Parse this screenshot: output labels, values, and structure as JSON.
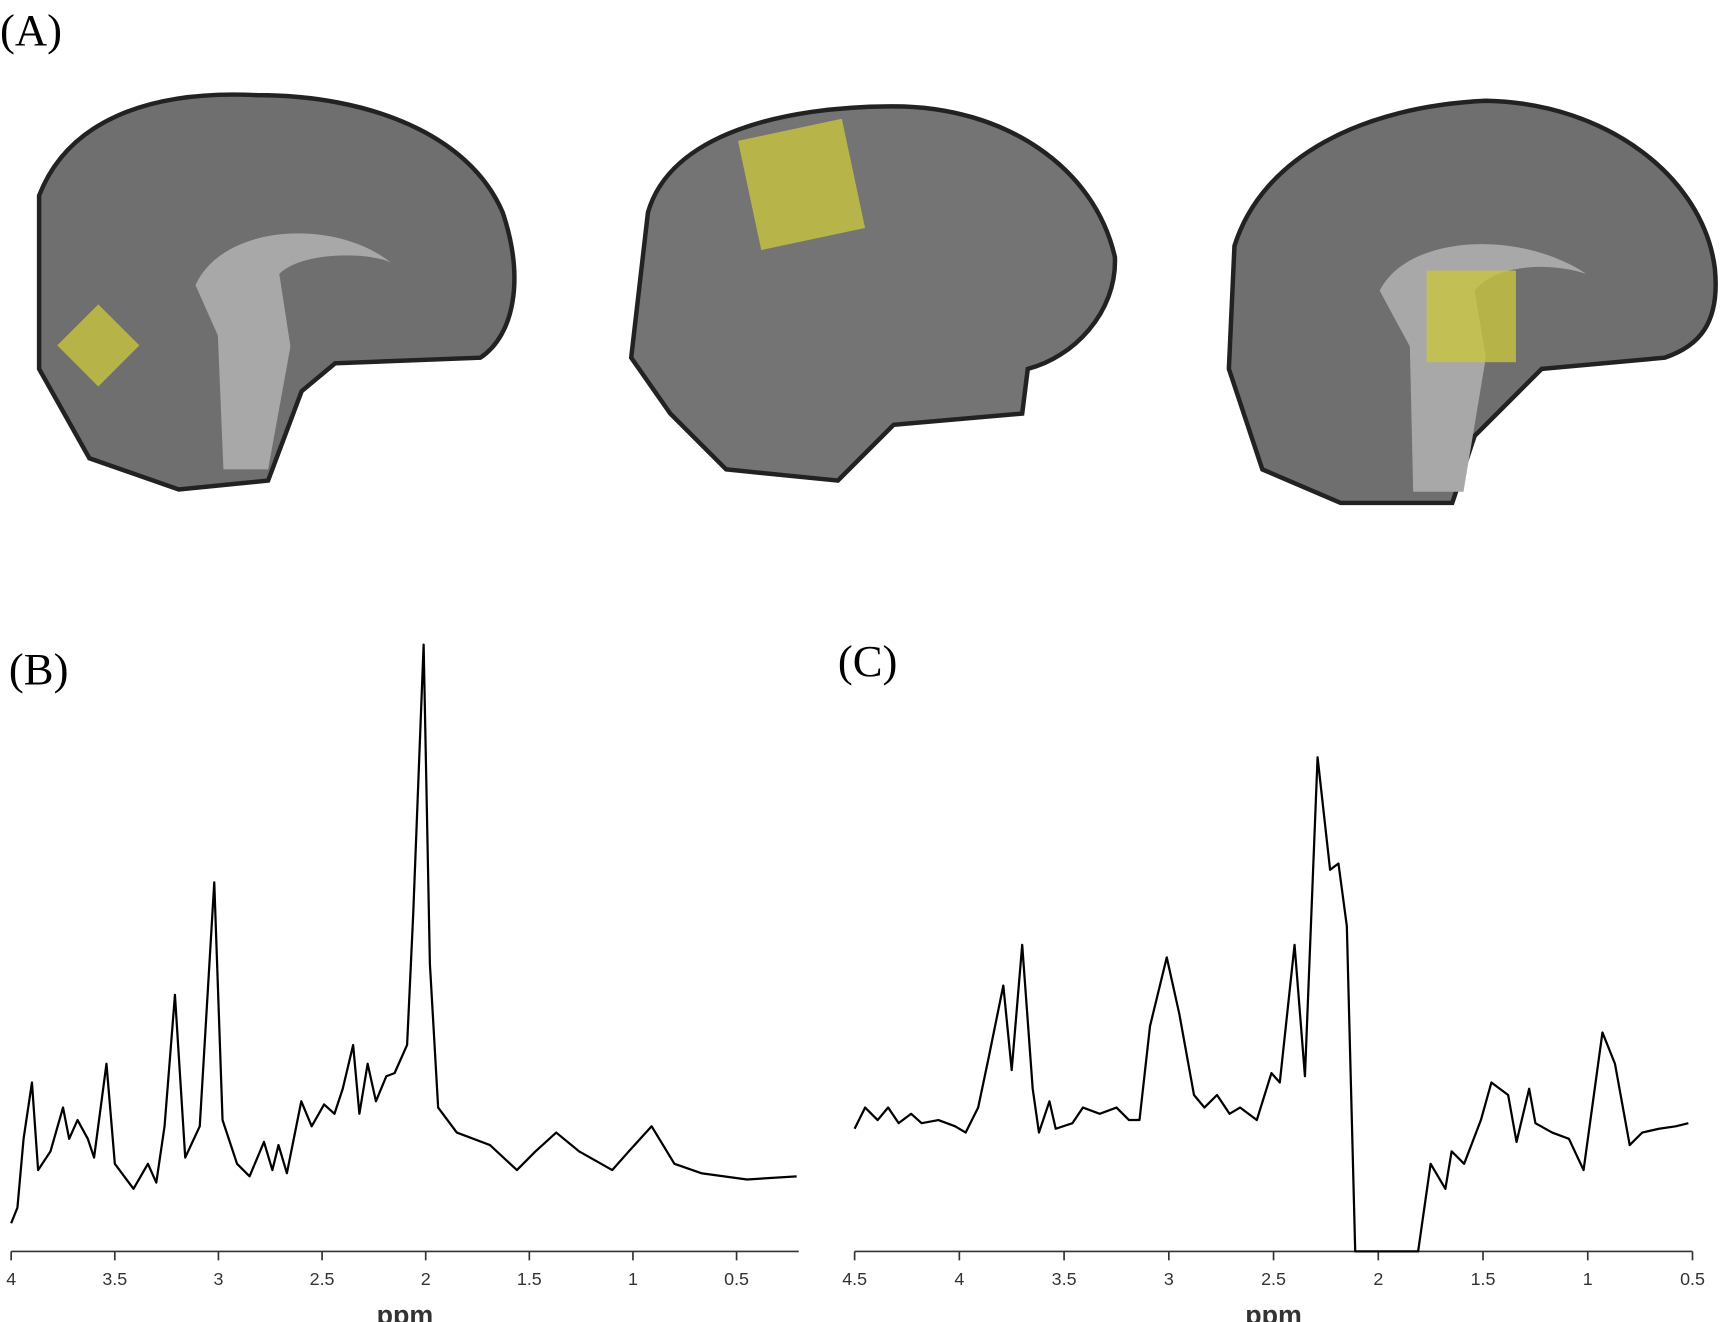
{
  "panel_a": {
    "label": "(A)"
  },
  "chart_data": [
    {
      "type": "line",
      "title": "(B)",
      "xlabel": "ppm",
      "color": "#000000",
      "grid": false,
      "xlim": [
        4,
        0.2
      ],
      "xticks": [
        4,
        3.5,
        3,
        2.5,
        2,
        1.5,
        1,
        0.5
      ],
      "ylim": [
        0,
        100
      ],
      "x": [
        4.0,
        3.97,
        3.94,
        3.9,
        3.87,
        3.81,
        3.75,
        3.72,
        3.68,
        3.63,
        3.6,
        3.54,
        3.5,
        3.41,
        3.34,
        3.3,
        3.26,
        3.21,
        3.16,
        3.09,
        3.02,
        2.98,
        2.91,
        2.85,
        2.78,
        2.74,
        2.71,
        2.67,
        2.6,
        2.55,
        2.49,
        2.44,
        2.4,
        2.35,
        2.32,
        2.28,
        2.24,
        2.19,
        2.15,
        2.09,
        2.06,
        2.01,
        1.98,
        1.94,
        1.85,
        1.69,
        1.56,
        1.47,
        1.37,
        1.26,
        1.1,
        1.02,
        0.91,
        0.8,
        0.67,
        0.45,
        0.21
      ],
      "values": [
        4.5,
        7,
        18,
        27,
        13,
        16,
        23,
        18,
        21,
        18,
        15,
        30,
        14,
        10,
        14,
        11,
        20,
        41,
        15,
        20,
        59,
        21,
        14,
        12,
        17.5,
        13,
        17,
        12.5,
        24,
        20,
        23.5,
        22,
        26,
        33,
        22,
        30,
        24,
        28,
        28.5,
        33,
        54,
        97,
        46,
        23,
        19,
        17,
        13,
        16,
        19,
        16,
        13,
        16,
        20,
        14,
        12.5,
        11.5,
        12
      ]
    },
    {
      "type": "line",
      "title": "(C)",
      "xlabel": "ppm",
      "color": "#000000",
      "grid": false,
      "xlim": [
        4.5,
        0.5
      ],
      "xticks": [
        4.5,
        4,
        3.5,
        3,
        2.5,
        2,
        1.5,
        1,
        0.5
      ],
      "ylim": [
        0,
        100
      ],
      "x": [
        4.5,
        4.45,
        4.39,
        4.34,
        4.29,
        4.23,
        4.18,
        4.1,
        4.02,
        3.97,
        3.91,
        3.86,
        3.79,
        3.75,
        3.7,
        3.65,
        3.62,
        3.57,
        3.54,
        3.46,
        3.41,
        3.33,
        3.25,
        3.19,
        3.14,
        3.09,
        3.01,
        2.95,
        2.88,
        2.83,
        2.77,
        2.71,
        2.66,
        2.58,
        2.51,
        2.47,
        2.4,
        2.35,
        2.29,
        2.23,
        2.19,
        2.15,
        2.11,
        1.89,
        1.81,
        1.75,
        1.68,
        1.65,
        1.59,
        1.51,
        1.46,
        1.38,
        1.34,
        1.28,
        1.25,
        1.17,
        1.09,
        1.02,
        0.93,
        0.87,
        0.8,
        0.74,
        0.66,
        0.58,
        0.52
      ],
      "values": [
        19.6,
        23,
        21,
        23,
        20.5,
        22,
        20.5,
        21,
        20,
        19,
        23,
        31,
        42.5,
        29,
        49,
        26,
        19,
        24,
        19.6,
        20.5,
        23,
        22,
        23,
        21,
        21,
        36,
        47,
        38,
        25,
        23,
        25,
        22,
        23,
        21,
        28.5,
        27,
        49,
        28,
        79,
        61,
        62,
        52,
        0,
        0,
        0,
        14,
        10,
        16,
        14,
        21,
        27,
        25,
        17.5,
        26,
        20.5,
        19,
        18,
        13,
        35,
        30,
        17,
        19,
        19.6,
        20,
        20.5
      ]
    }
  ]
}
